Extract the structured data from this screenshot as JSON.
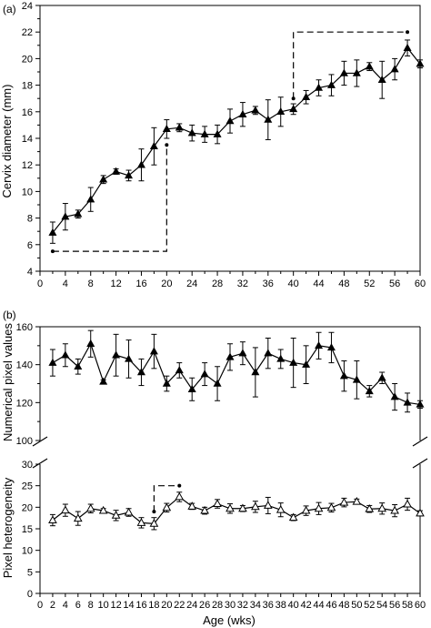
{
  "colors": {
    "ink": "#000000",
    "background": "#ffffff",
    "open_marker_fill": "#ffffff"
  },
  "chart_data": [
    {
      "type": "line",
      "panel_label": "(a)",
      "xlabel": "",
      "ylabel": "Cervix diameter (mm)",
      "xlim": [
        0,
        60
      ],
      "ylim": [
        4,
        24
      ],
      "x_ticks": [
        "0",
        "4",
        "8",
        "12",
        "16",
        "20",
        "24",
        "28",
        "32",
        "36",
        "40",
        "44",
        "48",
        "52",
        "56",
        "60"
      ],
      "y_ticks": [
        "4",
        "6",
        "8",
        "10",
        "12",
        "14",
        "16",
        "18",
        "20",
        "22",
        "24"
      ],
      "grid": false,
      "legend": "none",
      "series": [
        {
          "marker": "filled-triangle",
          "x": [
            2,
            4,
            6,
            8,
            10,
            12,
            14,
            16,
            18,
            20,
            22,
            24,
            26,
            28,
            30,
            32,
            34,
            36,
            38,
            40,
            42,
            44,
            46,
            48,
            50,
            52,
            54,
            56,
            58,
            60
          ],
          "y": [
            6.9,
            8.1,
            8.3,
            9.4,
            10.9,
            11.5,
            11.2,
            12.0,
            13.4,
            14.7,
            14.8,
            14.4,
            14.3,
            14.3,
            15.3,
            15.8,
            16.1,
            15.4,
            16.0,
            16.2,
            17.1,
            17.8,
            18.0,
            18.9,
            18.9,
            19.4,
            18.4,
            19.2,
            20.8,
            19.6
          ],
          "error": [
            0.8,
            1.0,
            0.3,
            0.9,
            0.3,
            0.2,
            0.4,
            1.2,
            1.4,
            0.7,
            0.3,
            0.6,
            0.6,
            0.7,
            0.9,
            0.9,
            0.3,
            1.5,
            1.1,
            0.4,
            0.5,
            0.6,
            0.8,
            0.9,
            1.0,
            0.3,
            1.4,
            0.8,
            0.6,
            0.3
          ]
        }
      ],
      "annotations": [
        {
          "type": "dashed-bracket",
          "points": [
            [
              2,
              5.5
            ],
            [
              20,
              5.5
            ],
            [
              20,
              13.5
            ]
          ]
        },
        {
          "type": "dashed-bracket",
          "points": [
            [
              40,
              17.0
            ],
            [
              40,
              22.0
            ],
            [
              58,
              22.0
            ]
          ]
        }
      ]
    },
    {
      "type": "line",
      "panel_label": "(b)",
      "xlabel": "Age (wks)",
      "ylabel_upper": "Numerical pixel values",
      "ylabel_lower": "Pixel heterogeneity",
      "xlim": [
        0,
        60
      ],
      "broken_y_axis": true,
      "ylim_upper": [
        100,
        160
      ],
      "ylim_lower": [
        0,
        30
      ],
      "x_ticks": [
        "0",
        "2",
        "4",
        "6",
        "8",
        "10",
        "12",
        "14",
        "16",
        "18",
        "20",
        "22",
        "24",
        "26",
        "28",
        "30",
        "32",
        "34",
        "36",
        "38",
        "40",
        "42",
        "44",
        "46",
        "48",
        "50",
        "52",
        "54",
        "56",
        "58",
        "60"
      ],
      "y_ticks_upper": [
        "100",
        "120",
        "140",
        "160"
      ],
      "y_ticks_lower": [
        "0",
        "5",
        "10",
        "15",
        "20",
        "25",
        "30"
      ],
      "grid": false,
      "legend": "none",
      "series": [
        {
          "marker": "filled-triangle",
          "axis": "upper",
          "x": [
            2,
            4,
            6,
            8,
            10,
            12,
            14,
            16,
            18,
            20,
            22,
            24,
            26,
            28,
            30,
            32,
            34,
            36,
            38,
            40,
            42,
            44,
            46,
            48,
            50,
            52,
            54,
            56,
            58,
            60
          ],
          "y": [
            141,
            145,
            139,
            151,
            131,
            145,
            143,
            136,
            147,
            130,
            137,
            127,
            135,
            130,
            144,
            146,
            136,
            146,
            143,
            141,
            140,
            150,
            149,
            134,
            132,
            126,
            133,
            123,
            120,
            119
          ],
          "error": [
            7,
            6,
            4,
            7,
            1,
            11,
            10,
            7,
            9,
            4,
            4,
            6,
            6,
            9,
            7,
            6,
            13,
            8,
            5,
            13,
            10,
            7,
            8,
            8,
            10,
            3,
            3,
            7,
            5,
            2
          ]
        },
        {
          "marker": "open-triangle",
          "axis": "lower",
          "x": [
            2,
            4,
            6,
            8,
            10,
            12,
            14,
            16,
            18,
            20,
            22,
            24,
            26,
            28,
            30,
            32,
            34,
            36,
            38,
            40,
            42,
            44,
            46,
            48,
            50,
            52,
            54,
            56,
            58,
            60
          ],
          "y": [
            17,
            19.3,
            17.4,
            19.7,
            19.2,
            18.1,
            18.8,
            16.4,
            16.2,
            19.9,
            22.4,
            20.2,
            19.2,
            20.8,
            19.7,
            19.7,
            20.1,
            20.4,
            19.4,
            17.6,
            19.2,
            19.7,
            19.9,
            21.1,
            21.3,
            19.6,
            19.7,
            19.2,
            20.7,
            18.6
          ],
          "error": [
            1.3,
            1.4,
            1.6,
            1.0,
            0.5,
            1.2,
            0.9,
            1.2,
            1.4,
            1.0,
            1.1,
            0.7,
            0.8,
            1.0,
            1.1,
            0.7,
            1.3,
            1.9,
            1.6,
            0.7,
            1.1,
            1.4,
            1.0,
            1.0,
            0.6,
            0.8,
            1.3,
            1.4,
            1.4,
            0.6
          ]
        }
      ],
      "annotations": [
        {
          "type": "dashed-bracket",
          "points": [
            [
              18,
              19.0
            ],
            [
              18,
              25.0
            ],
            [
              22,
              25.0
            ]
          ]
        }
      ]
    }
  ]
}
